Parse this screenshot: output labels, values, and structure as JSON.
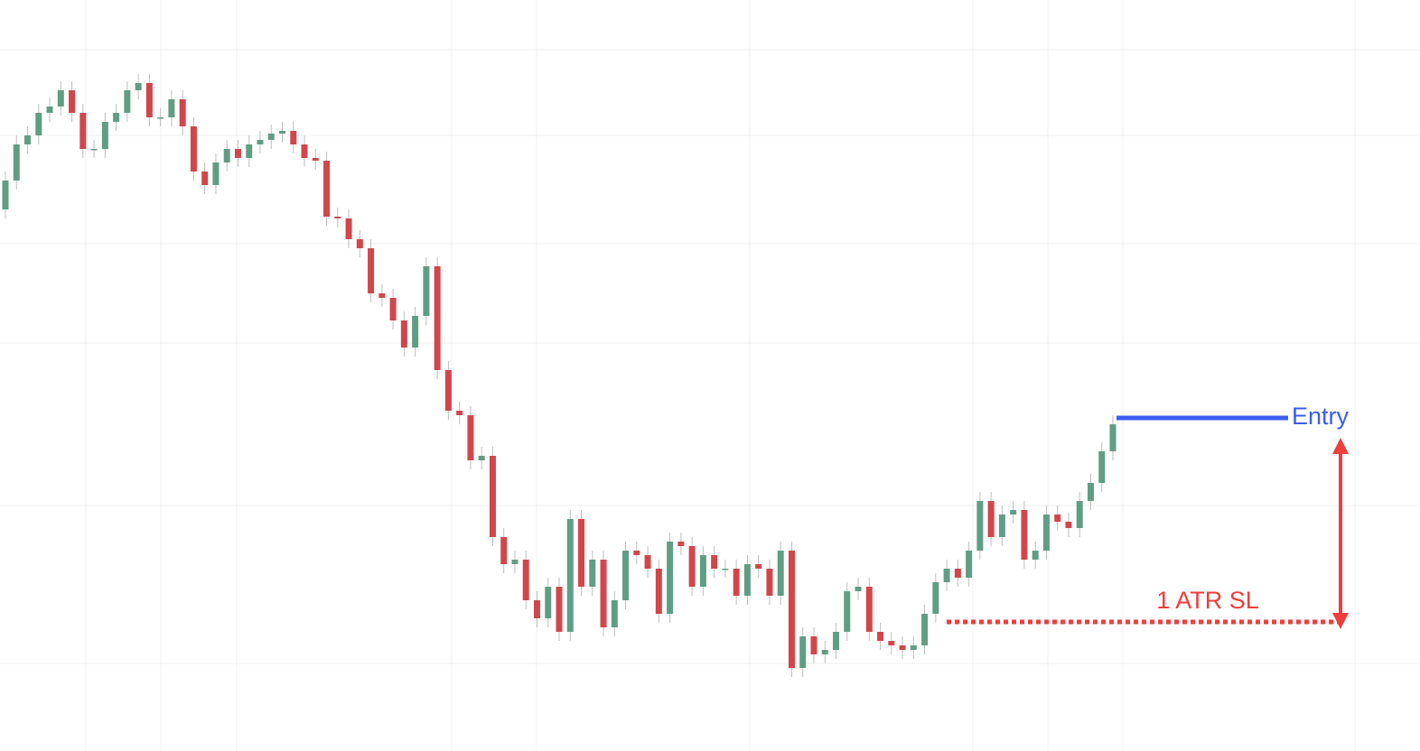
{
  "chart_data": {
    "type": "candlestick",
    "open": [
      60.0,
      63.2,
      67.2,
      68.2,
      70.7,
      71.4,
      73.2,
      70.7,
      66.7,
      66.7,
      69.7,
      70.7,
      73.2,
      74.0,
      70.2,
      70.2,
      72.2,
      69.2,
      64.2,
      62.7,
      65.2,
      66.7,
      65.7,
      67.2,
      67.7,
      68.4,
      68.7,
      67.2,
      65.7,
      65.4,
      59.2,
      59.0,
      56.7,
      55.7,
      50.7,
      50.2,
      47.7,
      44.7,
      48.2,
      53.7,
      42.2,
      37.7,
      37.2,
      32.2,
      32.7,
      23.7,
      20.7,
      21.2,
      16.7,
      14.7,
      18.2,
      13.2,
      25.7,
      18.2,
      21.2,
      13.7,
      16.7,
      22.2,
      21.7,
      20.2,
      15.2,
      23.2,
      22.7,
      18.2,
      21.7,
      20.2,
      20.2,
      17.2,
      20.7,
      20.2,
      17.2,
      22.2,
      9.2,
      12.7,
      10.7,
      11.2,
      13.2,
      17.7,
      18.2,
      13.2,
      12.2,
      11.7,
      11.2,
      11.7,
      15.2,
      18.7,
      20.2,
      19.2,
      22.2,
      27.7,
      23.7,
      26.2,
      26.7,
      21.2,
      22.2,
      26.2,
      25.4,
      24.7,
      27.7,
      29.7,
      33.2
    ],
    "high": [
      64.2,
      68.2,
      69.2,
      71.7,
      72.4,
      74.2,
      74.2,
      71.7,
      67.7,
      70.7,
      71.7,
      74.2,
      75.0,
      75.0,
      71.2,
      73.2,
      73.2,
      70.2,
      65.2,
      66.2,
      67.7,
      67.7,
      68.2,
      68.7,
      69.4,
      69.7,
      69.7,
      68.2,
      66.7,
      66.4,
      60.2,
      60.0,
      57.7,
      56.7,
      51.7,
      51.2,
      48.7,
      49.2,
      54.7,
      54.7,
      43.2,
      38.7,
      38.2,
      33.7,
      33.7,
      24.7,
      22.2,
      22.2,
      17.7,
      19.2,
      19.2,
      26.7,
      26.7,
      22.2,
      22.2,
      17.7,
      23.2,
      23.2,
      22.7,
      21.2,
      24.2,
      24.2,
      23.7,
      22.7,
      22.7,
      21.2,
      21.2,
      21.7,
      21.7,
      21.2,
      23.2,
      23.2,
      13.7,
      13.7,
      12.2,
      14.2,
      18.7,
      19.2,
      19.2,
      14.2,
      13.2,
      12.7,
      12.7,
      16.2,
      19.7,
      21.2,
      21.2,
      23.2,
      28.7,
      28.7,
      27.2,
      27.7,
      27.7,
      23.2,
      27.2,
      27.2,
      26.4,
      28.7,
      30.7,
      34.2,
      37.2
    ],
    "low": [
      59.0,
      62.2,
      66.2,
      67.2,
      69.7,
      70.4,
      69.7,
      65.7,
      65.7,
      65.7,
      68.7,
      69.7,
      72.2,
      69.2,
      69.2,
      69.2,
      68.2,
      63.2,
      61.7,
      61.7,
      64.2,
      64.7,
      64.7,
      66.2,
      66.7,
      67.4,
      66.2,
      64.7,
      64.4,
      58.2,
      58.0,
      55.7,
      54.7,
      49.7,
      49.2,
      46.7,
      43.7,
      43.7,
      47.2,
      41.2,
      36.7,
      36.2,
      31.2,
      31.2,
      22.7,
      19.7,
      19.7,
      15.7,
      13.7,
      13.7,
      12.2,
      12.2,
      17.2,
      17.2,
      12.7,
      12.7,
      15.7,
      20.7,
      19.2,
      14.2,
      14.2,
      21.7,
      17.2,
      17.2,
      19.2,
      19.2,
      16.2,
      16.2,
      19.2,
      16.2,
      16.2,
      8.2,
      8.2,
      9.7,
      9.7,
      10.2,
      12.2,
      16.7,
      12.2,
      11.2,
      10.7,
      10.2,
      10.2,
      10.7,
      14.2,
      17.7,
      18.2,
      18.2,
      21.2,
      22.7,
      22.7,
      25.2,
      20.2,
      20.2,
      21.2,
      24.4,
      23.7,
      23.7,
      26.7,
      28.7,
      32.2
    ],
    "close": [
      63.2,
      67.2,
      68.2,
      70.7,
      71.4,
      73.2,
      70.7,
      66.7,
      66.7,
      69.7,
      70.7,
      73.2,
      74.0,
      70.2,
      70.2,
      72.2,
      69.2,
      64.2,
      62.7,
      65.2,
      66.7,
      65.7,
      67.2,
      67.7,
      68.4,
      68.7,
      67.2,
      65.7,
      65.4,
      59.2,
      59.0,
      56.7,
      55.7,
      50.7,
      50.2,
      47.7,
      44.7,
      48.2,
      53.7,
      42.2,
      37.7,
      37.2,
      32.2,
      32.7,
      23.7,
      20.7,
      21.2,
      16.7,
      14.7,
      18.2,
      13.2,
      25.7,
      18.2,
      21.2,
      13.7,
      16.7,
      22.2,
      21.7,
      20.2,
      15.2,
      23.2,
      22.7,
      18.2,
      21.7,
      20.2,
      20.2,
      17.2,
      20.7,
      20.2,
      17.2,
      22.2,
      9.2,
      12.7,
      10.7,
      11.2,
      13.2,
      17.7,
      18.2,
      13.2,
      12.2,
      11.7,
      11.2,
      11.7,
      15.2,
      18.7,
      20.2,
      19.2,
      22.2,
      27.7,
      23.7,
      26.2,
      26.7,
      21.2,
      22.2,
      26.2,
      25.4,
      24.7,
      27.7,
      29.7,
      33.2,
      36.2
    ],
    "ylim": [
      0,
      83.2
    ],
    "up_color": "#5f9e84",
    "down_color": "#d2464b",
    "entry": {
      "label": "Entry",
      "value": 36.9,
      "color": "#3d5cf2"
    },
    "stop_loss": {
      "label": "1 ATR SL",
      "value": 14.3,
      "color": "#ef3d3d"
    }
  }
}
